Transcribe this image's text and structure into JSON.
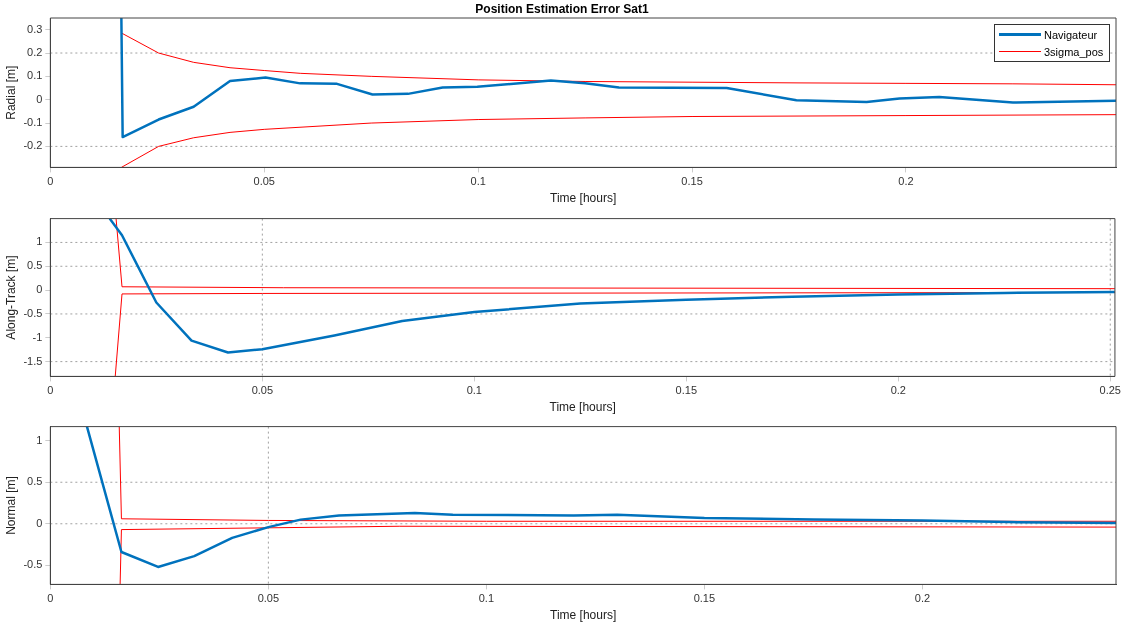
{
  "chart_data": [
    {
      "type": "line",
      "title": "Position Estimation Error Sat1",
      "xlabel": "Time [hours]",
      "ylabel": "Radial [m]",
      "xlim": [
        0,
        0.2491
      ],
      "xticks": [
        0,
        0.05,
        0.1,
        0.15,
        0.2
      ],
      "ylim": [
        -0.29,
        0.35
      ],
      "yticks": [
        -0.2,
        -0.1,
        0,
        0.1,
        0.2,
        0.3
      ],
      "legend": "top right",
      "marker": "none",
      "line_style": "solid",
      "ref_lines": [
        {
          "axis": "y",
          "value": 0.2,
          "color": "#a0a0a0",
          "line_style": "dotted"
        },
        {
          "axis": "y",
          "value": -0.2,
          "color": "#a0a0a0",
          "line_style": "dotted"
        }
      ],
      "series": [
        {
          "name": "Navigateur",
          "color": "#0072bd",
          "x": [
            0.0166,
            0.0169,
            0.0253,
            0.0335,
            0.042,
            0.0503,
            0.0584,
            0.067,
            0.0753,
            0.0836,
            0.0917,
            0.0998,
            0.117,
            0.125,
            0.1329,
            0.1581,
            0.1744,
            0.1908,
            0.1985,
            0.2078,
            0.225,
            0.2491
          ],
          "values": [
            0.35,
            -0.16,
            -0.085,
            -0.03,
            0.08,
            0.095,
            0.07,
            0.068,
            0.022,
            0.025,
            0.052,
            0.055,
            0.082,
            0.07,
            0.052,
            0.05,
            -0.002,
            -0.01,
            0.005,
            0.012,
            -0.012,
            -0.005
          ]
        },
        {
          "name": "3sigma_pos",
          "color": "#ff0000",
          "x": [
            0.0167,
            0.0253,
            0.0335,
            0.042,
            0.05,
            0.0584,
            0.075,
            0.1,
            0.125,
            0.15,
            0.175,
            0.2,
            0.225,
            0.2491
          ],
          "values": [
            0.285,
            0.2,
            0.16,
            0.137,
            0.125,
            0.113,
            0.1,
            0.085,
            0.078,
            0.075,
            0.072,
            0.07,
            0.068,
            0.064
          ]
        },
        {
          "color": "#ff0000",
          "x": [
            0.0166,
            0.0253,
            0.0335,
            0.042,
            0.05,
            0.075,
            0.1,
            0.125,
            0.15,
            0.2,
            0.2491
          ],
          "values": [
            -0.29,
            -0.2,
            -0.163,
            -0.14,
            -0.127,
            -0.1,
            -0.085,
            -0.078,
            -0.072,
            -0.068,
            -0.064
          ]
        }
      ]
    },
    {
      "type": "line",
      "xlabel": "Time [hours]",
      "ylabel": "Along-Track [m]",
      "xlim": [
        0,
        0.2511
      ],
      "xticks": [
        0,
        0.05,
        0.1,
        0.15,
        0.2,
        0.25
      ],
      "ylim": [
        -1.81,
        1.5
      ],
      "yticks": [
        -1.5,
        -1,
        -0.5,
        0,
        0.5,
        1
      ],
      "marker": "none",
      "line_style": "solid",
      "ref_lines": [
        {
          "axis": "y",
          "value": 1,
          "color": "#a0a0a0",
          "line_style": "dotted"
        },
        {
          "axis": "y",
          "value": 0.5,
          "color": "#a0a0a0",
          "line_style": "dotted"
        },
        {
          "axis": "y",
          "value": -0.5,
          "color": "#a0a0a0",
          "line_style": "dotted"
        },
        {
          "axis": "y",
          "value": -1.5,
          "color": "#a0a0a0",
          "line_style": "dotted"
        },
        {
          "axis": "x",
          "value": 0.05,
          "color": "#a0a0a0",
          "line_style": "dotted"
        },
        {
          "axis": "x",
          "value": 0.25,
          "color": "#a0a0a0",
          "line_style": "dotted"
        }
      ],
      "series": [
        {
          "color": "#0072bd",
          "x": [
            0.014,
            0.0169,
            0.025,
            0.0333,
            0.0419,
            0.05,
            0.067,
            0.083,
            0.1,
            0.125,
            0.15,
            0.175,
            0.2,
            0.225,
            0.2511
          ],
          "values": [
            1.5,
            1.15,
            -0.26,
            -1.06,
            -1.31,
            -1.24,
            -0.95,
            -0.65,
            -0.46,
            -0.28,
            -0.2,
            -0.14,
            -0.09,
            -0.06,
            -0.04
          ]
        },
        {
          "color": "#ff0000",
          "x": [
            0.0155,
            0.0169,
            0.055,
            0.2511
          ],
          "values": [
            1.5,
            0.07,
            0.05,
            0.03
          ]
        },
        {
          "color": "#ff0000",
          "x": [
            0.0153,
            0.0169,
            0.05,
            0.2511
          ],
          "values": [
            -1.81,
            -0.08,
            -0.07,
            -0.05
          ]
        }
      ]
    },
    {
      "type": "line",
      "xlabel": "Time [hours]",
      "ylabel": "Normal [m]",
      "xlim": [
        0,
        0.2444
      ],
      "xticks": [
        0,
        0.05,
        0.1,
        0.15,
        0.2
      ],
      "ylim": [
        -0.73,
        1.17
      ],
      "yticks": [
        -0.5,
        0,
        0.5,
        1
      ],
      "marker": "none",
      "line_style": "solid",
      "ref_lines": [
        {
          "axis": "y",
          "value": 0.5,
          "color": "#a0a0a0",
          "line_style": "dotted"
        },
        {
          "axis": "y",
          "value": 0,
          "color": "#a0a0a0",
          "line_style": "dotted"
        },
        {
          "axis": "x",
          "value": 0.05,
          "color": "#a0a0a0",
          "line_style": "dotted"
        }
      ],
      "series": [
        {
          "color": "#0072bd",
          "x": [
            0.0084,
            0.0163,
            0.0247,
            0.033,
            0.0417,
            0.05,
            0.0574,
            0.0662,
            0.0836,
            0.0923,
            0.12,
            0.13,
            0.15,
            0.175,
            0.2,
            0.22,
            0.2444
          ],
          "values": [
            1.17,
            -0.34,
            -0.52,
            -0.39,
            -0.17,
            -0.04,
            0.05,
            0.1,
            0.13,
            0.11,
            0.1,
            0.11,
            0.07,
            0.05,
            0.04,
            0.02,
            0.01
          ]
        },
        {
          "color": "#ff0000",
          "x": [
            0.0158,
            0.0163,
            0.05,
            0.1,
            0.2444
          ],
          "values": [
            1.17,
            0.06,
            0.04,
            0.03,
            0.03
          ]
        },
        {
          "color": "#ff0000",
          "x": [
            0.016,
            0.0163,
            0.08,
            0.2444
          ],
          "values": [
            -0.73,
            -0.07,
            -0.03,
            -0.04
          ]
        }
      ]
    }
  ]
}
